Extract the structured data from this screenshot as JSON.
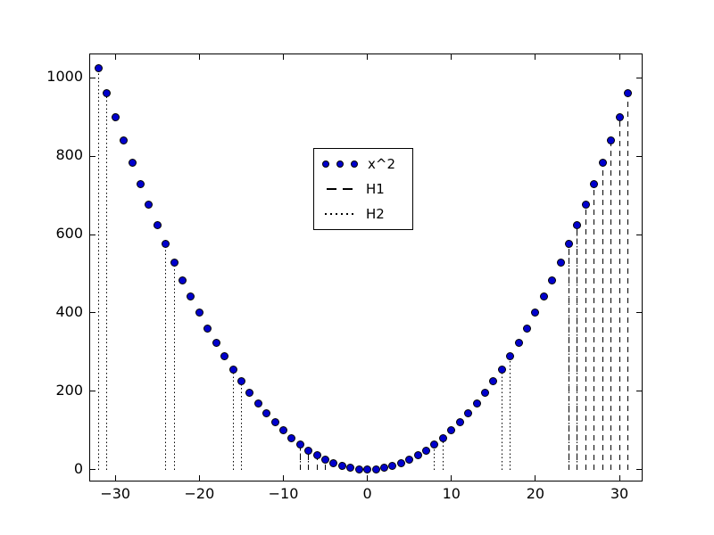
{
  "chart_data": {
    "type": "scatter",
    "title": "",
    "xlabel": "",
    "ylabel": "",
    "grid": false,
    "point_color": "#0000CD",
    "point_edge_color": "#000000",
    "line_color": "#000000",
    "axes": {
      "xlim": [
        -33.0,
        32.65
      ],
      "ylim": [
        -28,
        1060
      ],
      "xticks": [
        -30,
        -20,
        -10,
        0,
        10,
        20,
        30
      ],
      "xtick_labels": [
        "−30",
        "−20",
        "−10",
        "0",
        "10",
        "20",
        "30"
      ],
      "yticks": [
        0,
        200,
        400,
        600,
        800,
        1000
      ],
      "ytick_labels": [
        "0",
        "200",
        "400",
        "600",
        "800",
        "1000"
      ]
    },
    "series": [
      {
        "name": "x^2",
        "type": "points",
        "marker": "circle",
        "x": [
          -32,
          -31,
          -30,
          -29,
          -28,
          -27,
          -26,
          -25,
          -24,
          -23,
          -22,
          -21,
          -20,
          -19,
          -18,
          -17,
          -16,
          -15,
          -14,
          -13,
          -12,
          -11,
          -10,
          -9,
          -8,
          -7,
          -6,
          -5,
          -4,
          -3,
          -2,
          -1,
          0,
          1,
          2,
          3,
          4,
          5,
          6,
          7,
          8,
          9,
          10,
          11,
          12,
          13,
          14,
          15,
          16,
          17,
          18,
          19,
          20,
          21,
          22,
          23,
          24,
          25,
          26,
          27,
          28,
          29,
          30,
          31
        ],
        "y": [
          1024,
          961,
          900,
          841,
          784,
          729,
          676,
          625,
          576,
          529,
          484,
          441,
          400,
          361,
          324,
          289,
          256,
          225,
          196,
          169,
          144,
          121,
          100,
          81,
          64,
          49,
          36,
          25,
          16,
          9,
          4,
          1,
          0,
          1,
          4,
          9,
          16,
          25,
          36,
          49,
          64,
          81,
          100,
          121,
          144,
          169,
          196,
          225,
          256,
          289,
          324,
          361,
          400,
          441,
          484,
          529,
          576,
          625,
          676,
          729,
          784,
          841,
          900,
          961
        ]
      },
      {
        "name": "H1",
        "type": "vlines",
        "linestyle": "dashed",
        "ymin": 0,
        "x": [
          -8,
          -7,
          -6,
          -5,
          24,
          25,
          26,
          27,
          28,
          29,
          30,
          31
        ],
        "ymax": [
          64,
          49,
          36,
          25,
          576,
          625,
          676,
          729,
          784,
          841,
          900,
          961
        ]
      },
      {
        "name": "H2",
        "type": "vlines",
        "linestyle": "dotted",
        "ymin": 0,
        "x": [
          -32,
          -31,
          -24,
          -23,
          -16,
          -15,
          -8,
          -7,
          8,
          9,
          16,
          17,
          24,
          25
        ],
        "ymax": [
          1024,
          961,
          576,
          529,
          256,
          225,
          64,
          49,
          64,
          81,
          256,
          289,
          576,
          625
        ]
      }
    ],
    "legend": {
      "position": "upper center",
      "entries": [
        {
          "label": "x^2",
          "kind": "markers"
        },
        {
          "label": "H1",
          "kind": "dashed-line"
        },
        {
          "label": "H2",
          "kind": "dotted-line"
        }
      ]
    }
  }
}
